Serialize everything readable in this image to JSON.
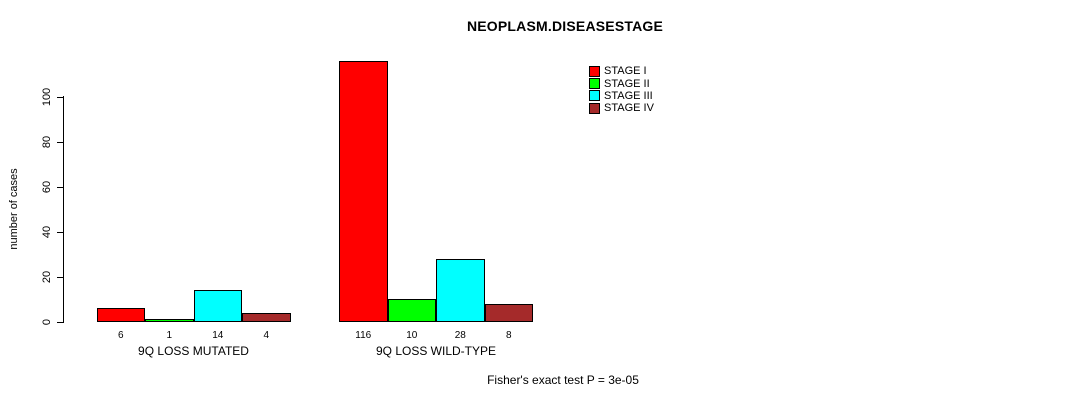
{
  "chart_data": {
    "type": "bar",
    "title": "NEOPLASM.DISEASESTAGE",
    "ylabel": "number of cases",
    "xlabel": "",
    "categories": [
      "9Q LOSS MUTATED",
      "9Q LOSS WILD-TYPE"
    ],
    "series": [
      {
        "name": "STAGE I",
        "color": "#ff0000",
        "values": [
          6,
          116
        ]
      },
      {
        "name": "STAGE II",
        "color": "#00ff00",
        "values": [
          1,
          10
        ]
      },
      {
        "name": "STAGE III",
        "color": "#00ffff",
        "values": [
          14,
          28
        ]
      },
      {
        "name": "STAGE IV",
        "color": "#a52a2a",
        "values": [
          4,
          8
        ]
      }
    ],
    "bar_labels": [
      [
        "6",
        "1",
        "14",
        "4"
      ],
      [
        "116",
        "10",
        "28",
        "8"
      ]
    ],
    "yticks": [
      0,
      20,
      40,
      60,
      80,
      100
    ],
    "ylim": [
      0,
      116
    ],
    "grid": false,
    "legend_position": "top-right",
    "annotation": "Fisher's exact test P = 3e-05"
  }
}
